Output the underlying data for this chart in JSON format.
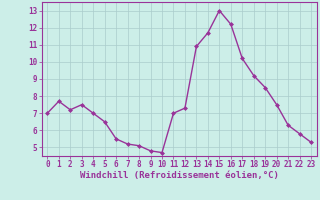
{
  "x": [
    0,
    1,
    2,
    3,
    4,
    5,
    6,
    7,
    8,
    9,
    10,
    11,
    12,
    13,
    14,
    15,
    16,
    17,
    18,
    19,
    20,
    21,
    22,
    23
  ],
  "y": [
    7.0,
    7.7,
    7.2,
    7.5,
    7.0,
    6.5,
    5.5,
    5.2,
    5.1,
    4.8,
    4.7,
    7.0,
    7.3,
    10.9,
    11.7,
    13.0,
    12.2,
    10.2,
    9.2,
    8.5,
    7.5,
    6.3,
    5.8,
    5.3
  ],
  "line_color": "#993399",
  "marker": "D",
  "marker_size": 2.0,
  "bg_color": "#cceee8",
  "grid_color": "#aacccc",
  "xlabel": "Windchill (Refroidissement éolien,°C)",
  "xlabel_fontsize": 6.5,
  "tick_fontsize": 5.5,
  "ylim": [
    4.5,
    13.5
  ],
  "yticks": [
    5,
    6,
    7,
    8,
    9,
    10,
    11,
    12,
    13
  ],
  "xticks": [
    0,
    1,
    2,
    3,
    4,
    5,
    6,
    7,
    8,
    9,
    10,
    11,
    12,
    13,
    14,
    15,
    16,
    17,
    18,
    19,
    20,
    21,
    22,
    23
  ],
  "linewidth": 1.0
}
